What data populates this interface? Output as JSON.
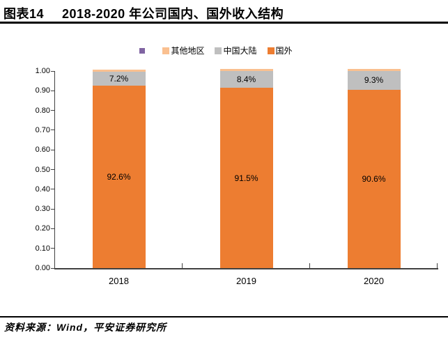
{
  "header": {
    "figure_label": "图表14",
    "title": "2018-2020 年公司国内、国外收入结构"
  },
  "chart_data": {
    "type": "bar",
    "stacked": true,
    "normalized": true,
    "categories": [
      "2018",
      "2019",
      "2020"
    ],
    "series": [
      {
        "key": "overseas",
        "name": "国外",
        "color": "#ED7D31",
        "values": [
          92.6,
          91.5,
          90.6
        ],
        "data_labels": [
          "92.6%",
          "91.5%",
          "90.6%"
        ]
      },
      {
        "key": "mainland-china",
        "name": "中国大陆",
        "color": "#BFBFBF",
        "values": [
          7.2,
          8.4,
          9.3
        ],
        "data_labels": [
          "7.2%",
          "8.4%",
          "9.3%"
        ]
      },
      {
        "key": "other-regions",
        "name": "其他地区",
        "color": "#FAC090",
        "values": [
          0.2,
          0.1,
          0.1
        ],
        "data_labels": [
          "",
          "",
          ""
        ]
      }
    ],
    "legend": [
      {
        "key": "unnamed",
        "label": "",
        "color": "#8064A2"
      },
      {
        "key": "other-regions",
        "label": "其他地区",
        "color": "#FAC090"
      },
      {
        "key": "mainland-china",
        "label": "中国大陆",
        "color": "#BFBFBF"
      },
      {
        "key": "overseas",
        "label": "国外",
        "color": "#ED7D31"
      }
    ],
    "ylim": [
      0,
      1
    ],
    "y_ticks": [
      "1.00",
      "0.90",
      "0.80",
      "0.70",
      "0.60",
      "0.50",
      "0.40",
      "0.30",
      "0.20",
      "0.10",
      "0.00"
    ],
    "legend_position": "top",
    "grid": false,
    "axis_color": "#404040"
  },
  "footer": {
    "source": "资料来源：Wind，平安证券研究所"
  }
}
